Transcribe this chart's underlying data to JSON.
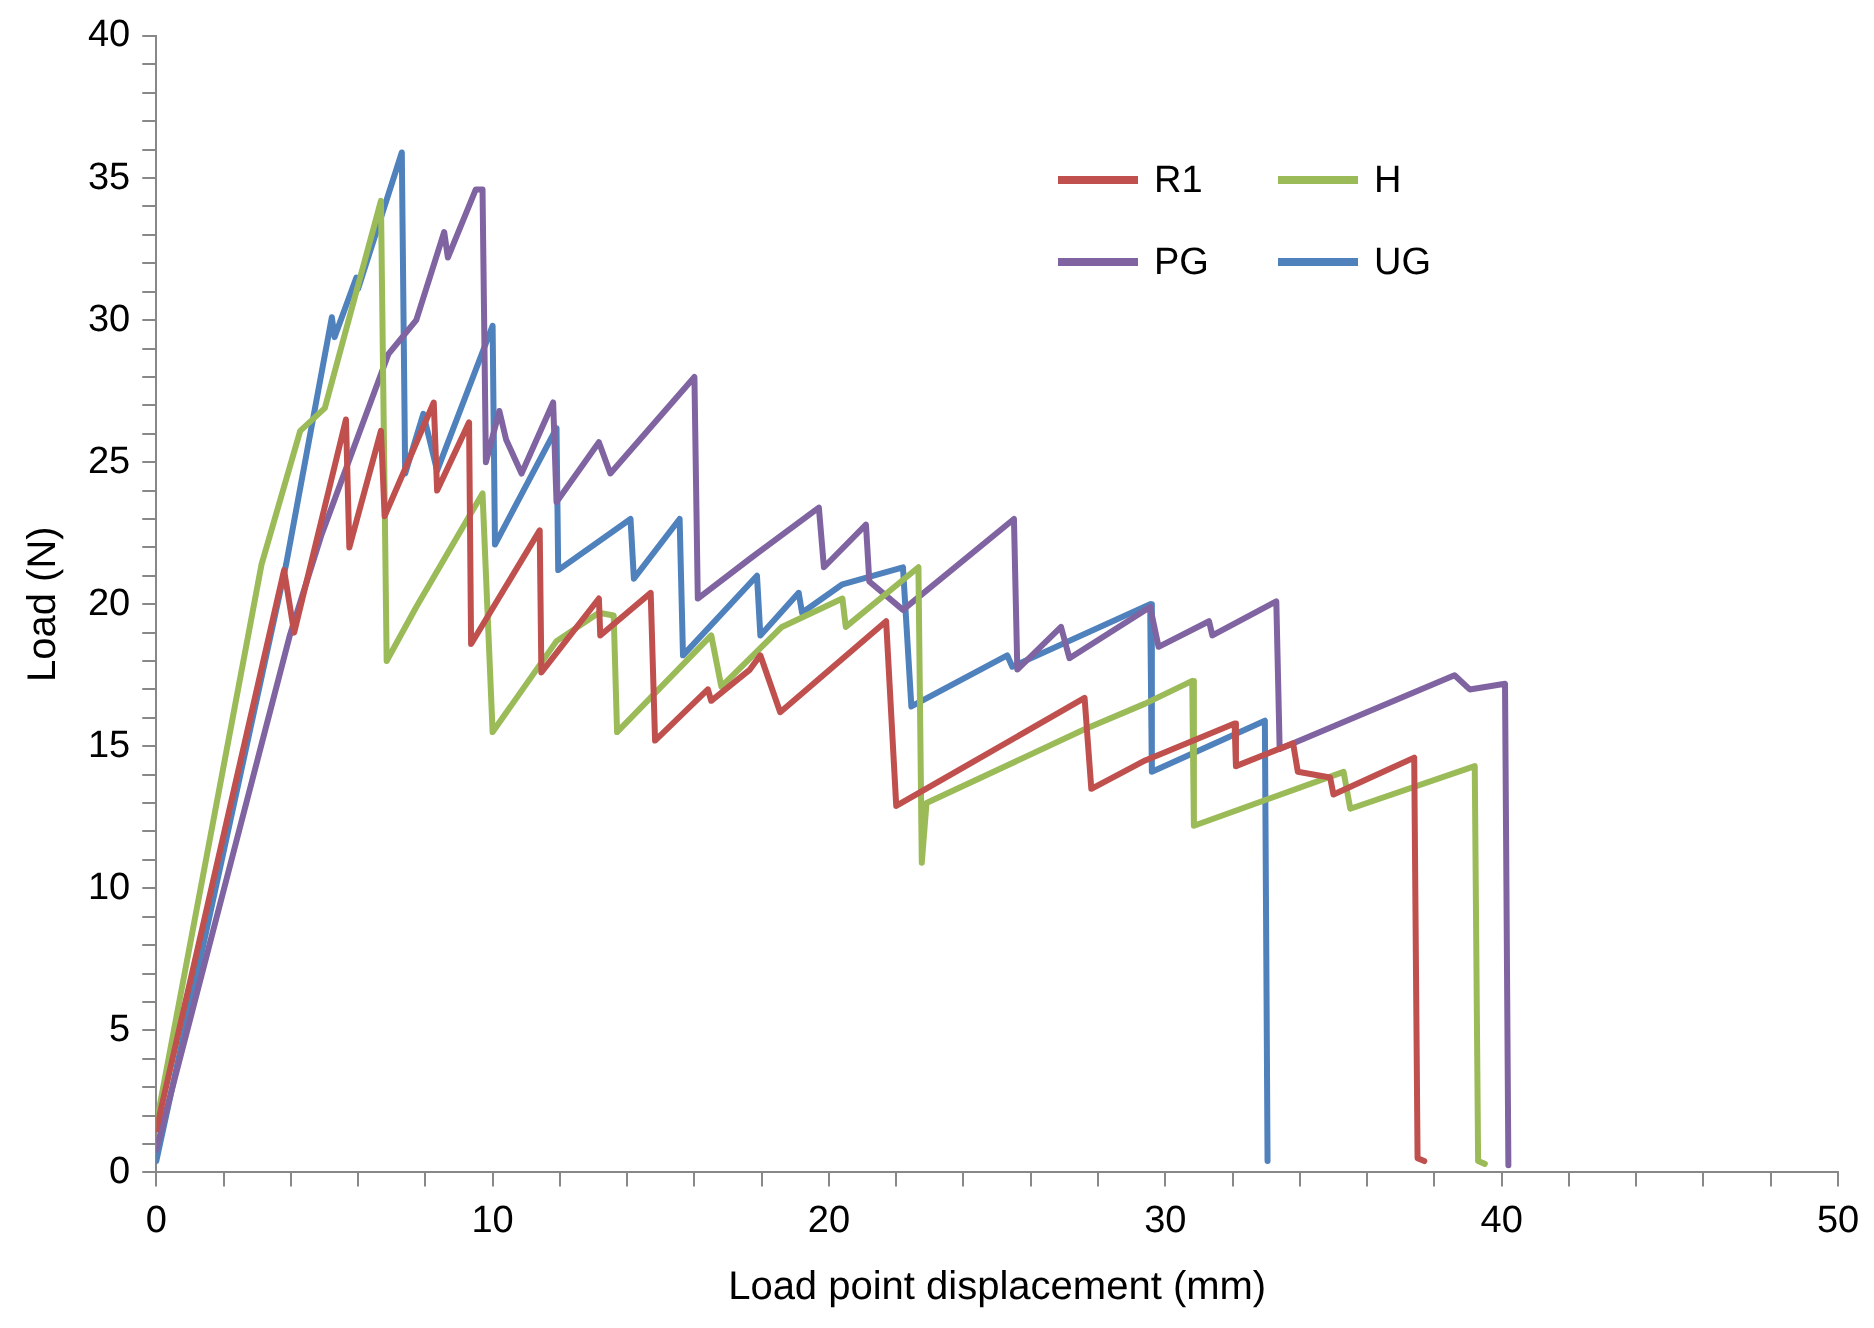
{
  "chart_data": {
    "type": "line",
    "xlabel": "Load point displacement (mm)",
    "ylabel": "Load (N)",
    "xlim": [
      0,
      50
    ],
    "ylim": [
      0,
      40
    ],
    "xticks": [
      0,
      {
        "value": 2,
        "label": null
      },
      {
        "value": 4,
        "label": null
      },
      {
        "value": 6,
        "label": null
      },
      {
        "value": 8,
        "label": null
      },
      10,
      {
        "value": 12,
        "label": null
      },
      {
        "value": 14,
        "label": null
      },
      {
        "value": 16,
        "label": null
      },
      {
        "value": 18,
        "label": null
      },
      20,
      {
        "value": 22,
        "label": null
      },
      {
        "value": 24,
        "label": null
      },
      {
        "value": 26,
        "label": null
      },
      {
        "value": 28,
        "label": null
      },
      30,
      {
        "value": 32,
        "label": null
      },
      {
        "value": 34,
        "label": null
      },
      {
        "value": 36,
        "label": null
      },
      {
        "value": 38,
        "label": null
      },
      40,
      {
        "value": 42,
        "label": null
      },
      {
        "value": 44,
        "label": null
      },
      {
        "value": 46,
        "label": null
      },
      {
        "value": 48,
        "label": null
      },
      50
    ],
    "yticks": [
      0,
      {
        "value": 1,
        "label": null
      },
      {
        "value": 2,
        "label": null
      },
      {
        "value": 3,
        "label": null
      },
      {
        "value": 4,
        "label": null
      },
      5,
      {
        "value": 6,
        "label": null
      },
      {
        "value": 7,
        "label": null
      },
      {
        "value": 8,
        "label": null
      },
      {
        "value": 9,
        "label": null
      },
      10,
      {
        "value": 11,
        "label": null
      },
      {
        "value": 12,
        "label": null
      },
      {
        "value": 13,
        "label": null
      },
      {
        "value": 14,
        "label": null
      },
      15,
      {
        "value": 16,
        "label": null
      },
      {
        "value": 17,
        "label": null
      },
      {
        "value": 18,
        "label": null
      },
      {
        "value": 19,
        "label": null
      },
      20,
      {
        "value": 21,
        "label": null
      },
      {
        "value": 22,
        "label": null
      },
      {
        "value": 23,
        "label": null
      },
      {
        "value": 24,
        "label": null
      },
      25,
      {
        "value": 26,
        "label": null
      },
      {
        "value": 27,
        "label": null
      },
      {
        "value": 28,
        "label": null
      },
      {
        "value": 29,
        "label": null
      },
      30,
      {
        "value": 31,
        "label": null
      },
      {
        "value": 32,
        "label": null
      },
      {
        "value": 33,
        "label": null
      },
      {
        "value": 34,
        "label": null
      },
      35,
      {
        "value": 36,
        "label": null
      },
      {
        "value": 37,
        "label": null
      },
      {
        "value": 38,
        "label": null
      },
      {
        "value": 39,
        "label": null
      },
      40
    ],
    "grid": false,
    "legend": "top right",
    "marker": "none",
    "line_style": "solid",
    "series": [
      {
        "name": "R1",
        "color": "#c0504d",
        "x": [
          0,
          3.8,
          4.1,
          5.64,
          5.74,
          6.68,
          6.79,
          8.25,
          8.35,
          9.3,
          9.36,
          11.4,
          11.45,
          13.16,
          13.2,
          14.7,
          14.83,
          16.4,
          16.5,
          17.65,
          17.96,
          18.55,
          21.7,
          22.0,
          27.6,
          27.8,
          29.4,
          32.06,
          32.1,
          33.8,
          33.94,
          34.9,
          35.0,
          37.4,
          37.5,
          37.7
        ],
        "values": [
          1.5,
          21.2,
          19.0,
          26.5,
          22.0,
          26.1,
          23.1,
          27.1,
          24.0,
          26.4,
          18.6,
          22.6,
          17.6,
          20.2,
          18.9,
          20.4,
          15.2,
          17.0,
          16.6,
          17.7,
          18.2,
          16.2,
          19.4,
          12.9,
          16.7,
          13.5,
          14.5,
          15.8,
          14.3,
          15.1,
          14.1,
          13.9,
          13.3,
          14.6,
          0.5,
          0.4
        ]
      },
      {
        "name": "H",
        "color": "#9bbb59",
        "x": [
          0,
          3.13,
          4.28,
          5.01,
          6.68,
          6.85,
          7.73,
          9.7,
          10.0,
          11.9,
          13.16,
          13.6,
          13.7,
          16.5,
          16.8,
          18.6,
          20.4,
          20.5,
          22.66,
          22.76,
          22.9,
          27.6,
          29.4,
          30.8,
          30.85,
          35.3,
          35.5,
          39.2,
          39.3,
          39.5
        ],
        "values": [
          1.7,
          21.4,
          26.1,
          26.9,
          34.2,
          18.0,
          19.9,
          23.9,
          15.5,
          18.7,
          19.7,
          19.6,
          15.5,
          18.9,
          17.1,
          19.2,
          20.2,
          19.2,
          21.3,
          10.9,
          13.0,
          15.6,
          16.5,
          17.3,
          12.2,
          14.1,
          12.8,
          14.3,
          0.4,
          0.3
        ]
      },
      {
        "name": "PG",
        "color": "#8064a2",
        "x": [
          0,
          3.97,
          4.9,
          6.9,
          7.73,
          8.56,
          8.67,
          9.5,
          9.7,
          9.8,
          10.2,
          10.4,
          10.86,
          11.8,
          11.9,
          13.16,
          13.5,
          16.0,
          16.1,
          17.65,
          19.7,
          19.85,
          21.1,
          21.2,
          22.2,
          25.5,
          25.6,
          26.9,
          27.15,
          29.55,
          29.8,
          31.3,
          31.4,
          33.3,
          33.4,
          38.6,
          39.05,
          40.1,
          40.2
        ],
        "values": [
          0.8,
          18.9,
          22.4,
          28.8,
          30.0,
          33.1,
          32.2,
          34.6,
          34.6,
          25.0,
          26.8,
          25.8,
          24.6,
          27.1,
          23.6,
          25.7,
          24.6,
          28.0,
          20.2,
          21.6,
          23.4,
          21.3,
          22.8,
          20.8,
          19.8,
          23.0,
          17.7,
          19.2,
          18.1,
          19.9,
          18.5,
          19.4,
          18.9,
          20.1,
          14.9,
          17.5,
          17.0,
          17.2,
          0.25
        ]
      },
      {
        "name": "UG",
        "color": "#4f81bd",
        "x": [
          0,
          3.86,
          5.22,
          5.3,
          5.95,
          6.0,
          7.3,
          7.4,
          7.94,
          8.35,
          10.0,
          10.07,
          11.9,
          11.95,
          14.1,
          14.2,
          15.56,
          15.66,
          17.86,
          17.96,
          19.1,
          19.2,
          20.4,
          22.2,
          22.45,
          25.3,
          25.45,
          29.55,
          29.6,
          32.96,
          33.04
        ],
        "values": [
          0.4,
          21.4,
          30.1,
          29.4,
          31.5,
          31.1,
          35.9,
          24.6,
          26.7,
          24.7,
          29.8,
          22.1,
          26.2,
          21.2,
          23.0,
          20.9,
          23.0,
          18.2,
          21.0,
          18.9,
          20.4,
          19.7,
          20.7,
          21.3,
          16.4,
          18.2,
          17.8,
          20.0,
          14.1,
          15.9,
          0.4
        ]
      }
    ]
  }
}
